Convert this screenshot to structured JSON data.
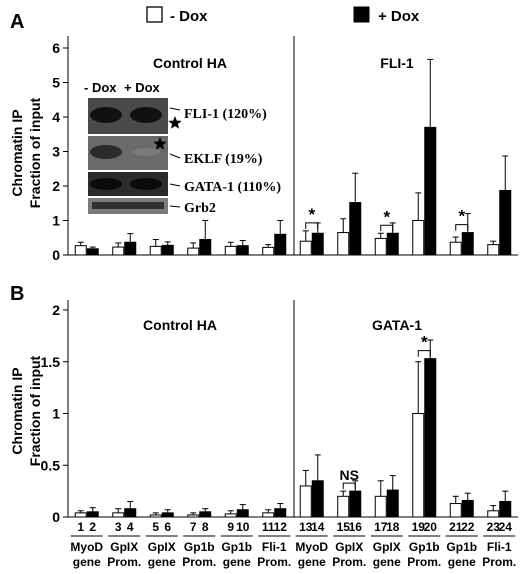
{
  "legend": {
    "minus_label": "- Dox",
    "plus_label": "+ Dox"
  },
  "colors": {
    "minus": "#ffffff",
    "plus": "#000000",
    "blot_bg": "#505050"
  },
  "chart_data": [
    {
      "panel_letter": "A",
      "type": "bar",
      "ylabel_line1": "Chromatin IP",
      "ylabel_line2": "Fraction of input",
      "ylim": [
        0,
        6
      ],
      "yticks": [
        "0",
        "1",
        "2",
        "3",
        "4",
        "5",
        "6"
      ],
      "left_title": "Control HA",
      "right_title": "FLI-1",
      "series": [
        {
          "name": "- Dox",
          "values": [
            0.27,
            0.23,
            0.25,
            0.2,
            0.25,
            0.22,
            0.4,
            0.65,
            0.48,
            1.0,
            0.37,
            0.3
          ],
          "errors": [
            0.1,
            0.12,
            0.2,
            0.15,
            0.12,
            0.08,
            0.3,
            0.4,
            0.15,
            0.8,
            0.15,
            0.1
          ]
        },
        {
          "name": "+ Dox",
          "values": [
            0.18,
            0.37,
            0.28,
            0.45,
            0.27,
            0.6,
            0.63,
            1.52,
            0.63,
            3.7,
            0.65,
            1.87
          ],
          "errors": [
            0.05,
            0.25,
            0.1,
            0.55,
            0.15,
            0.4,
            0.3,
            0.85,
            0.3,
            1.97,
            0.55,
            1.0
          ]
        }
      ],
      "significance": [
        {
          "group": 7,
          "label": "*"
        },
        {
          "group": 9,
          "label": "*"
        },
        {
          "group": 11,
          "label": "*"
        }
      ],
      "inset": {
        "header_minus": "- Dox",
        "header_plus": "+ Dox",
        "bands": [
          {
            "label": "FLI-1 (120%)"
          },
          {
            "label": "EKLF (19%)"
          },
          {
            "label": "GATA-1 (110%)"
          },
          {
            "label": "Grb2"
          }
        ]
      }
    },
    {
      "panel_letter": "B",
      "type": "bar",
      "ylabel_line1": "Chromatin IP",
      "ylabel_line2": "Fraction of input",
      "ylim": [
        0,
        2
      ],
      "yticks": [
        "0",
        "0.5",
        "1",
        "1.5",
        "2"
      ],
      "left_title": "Control HA",
      "right_title": "GATA-1",
      "categories": [
        "MyoD gene",
        "GpIX Prom.",
        "GpIX gene",
        "Gp1b Prom.",
        "Gp1b gene",
        "Fli-1 Prom.",
        "MyoD gene",
        "GpIX Prom.",
        "GpIX gene",
        "Gp1b Prom.",
        "Gp1b gene",
        "Fli-1 Prom."
      ],
      "lane_numbers": [
        [
          "1",
          "2"
        ],
        [
          "3",
          "4"
        ],
        [
          "5",
          "6"
        ],
        [
          "7",
          "8"
        ],
        [
          "9",
          "10"
        ],
        [
          "11",
          "12"
        ],
        [
          "13",
          "14"
        ],
        [
          "15",
          "16"
        ],
        [
          "17",
          "18"
        ],
        [
          "19",
          "20"
        ],
        [
          "21",
          "22"
        ],
        [
          "23",
          "24"
        ]
      ],
      "series": [
        {
          "name": "- Dox",
          "values": [
            0.04,
            0.04,
            0.02,
            0.02,
            0.03,
            0.04,
            0.3,
            0.2,
            0.2,
            1.0,
            0.13,
            0.06
          ],
          "errors": [
            0.02,
            0.04,
            0.02,
            0.02,
            0.03,
            0.03,
            0.15,
            0.05,
            0.15,
            0.5,
            0.07,
            0.05
          ]
        },
        {
          "name": "+ Dox",
          "values": [
            0.05,
            0.08,
            0.04,
            0.05,
            0.07,
            0.08,
            0.35,
            0.25,
            0.26,
            1.53,
            0.16,
            0.15
          ],
          "errors": [
            0.04,
            0.07,
            0.03,
            0.03,
            0.05,
            0.05,
            0.25,
            0.1,
            0.14,
            0.18,
            0.07,
            0.1
          ]
        }
      ],
      "significance": [
        {
          "group": 8,
          "label": "NS"
        },
        {
          "group": 10,
          "label": "*"
        }
      ]
    }
  ]
}
